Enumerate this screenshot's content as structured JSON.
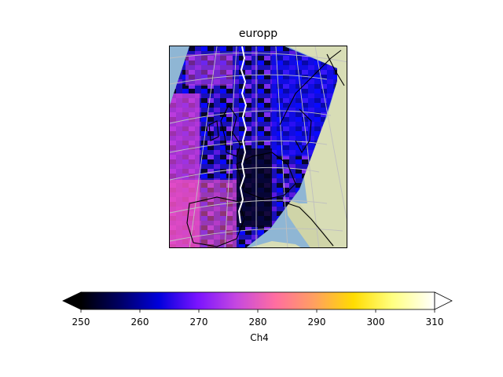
{
  "title": "europp",
  "colorbar": {
    "label": "Ch4",
    "ticks": [
      "250",
      "260",
      "270",
      "280",
      "290",
      "300",
      "310"
    ],
    "min": 250,
    "max": 310,
    "extend": "both",
    "colormap": "gnuplot2",
    "stops": [
      "#000000",
      "#000064",
      "#0000dc",
      "#7a14ff",
      "#c648e0",
      "#ff6ea0",
      "#ffa060",
      "#ffdc00",
      "#ffff80",
      "#ffffff"
    ]
  },
  "map": {
    "projection": "europp",
    "background": {
      "ocean": "#8fb6d4",
      "land": "#d8ddb6"
    },
    "swath_color_low": "#05052a",
    "swath_color_high": "#ff5ab4"
  }
}
